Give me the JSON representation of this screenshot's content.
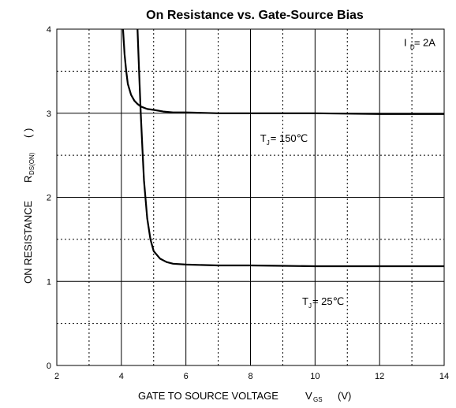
{
  "chart_data": {
    "type": "line",
    "title": "On Resistance vs. Gate-Source Bias",
    "xlabel": {
      "main": "GATE TO SOURCE VOLTAGE",
      "sym": "V",
      "sub": "GS",
      "unit": "(V)"
    },
    "ylabel": {
      "main": "ON RESISTANCE",
      "sym": "R",
      "sub": "DS(ON)",
      "unit": "( )"
    },
    "xlim": [
      2,
      14
    ],
    "ylim": [
      0,
      4
    ],
    "x_ticks": [
      "2",
      "4",
      "6",
      "8",
      "10",
      "12",
      "14"
    ],
    "y_ticks": [
      "0",
      "1",
      "2",
      "3",
      "4"
    ],
    "x_tick_values": [
      2,
      4,
      6,
      8,
      10,
      12,
      14
    ],
    "y_tick_values": [
      0,
      1,
      2,
      3,
      4
    ],
    "grid": true,
    "legend": "none",
    "annotations": [
      {
        "id": "id",
        "sym": "I",
        "sub": "D",
        "text": " = 2A",
        "x": 12.75,
        "y": 3.8
      },
      {
        "id": "tj150",
        "sym": "T",
        "sub": "J",
        "text": " = 150℃",
        "x": 8.3,
        "y": 2.66
      },
      {
        "id": "tj25",
        "sym": "T",
        "sub": "J",
        "text": " = 25℃",
        "x": 9.6,
        "y": 0.72
      }
    ],
    "series": [
      {
        "label": "T_J = 150℃",
        "x": [
          4.05,
          4.1,
          4.15,
          4.2,
          4.3,
          4.4,
          4.5,
          4.6,
          4.8,
          5.0,
          5.3,
          5.6,
          6.0,
          7.0,
          8.0,
          9.0,
          10.0,
          11.0,
          12.0,
          13.0,
          14.0
        ],
        "y": [
          4.0,
          3.7,
          3.5,
          3.35,
          3.22,
          3.15,
          3.11,
          3.08,
          3.05,
          3.04,
          3.02,
          3.01,
          3.01,
          3.0,
          3.0,
          3.0,
          3.0,
          2.995,
          2.99,
          2.99,
          2.99
        ]
      },
      {
        "label": "T_J = 25℃",
        "x": [
          4.5,
          4.55,
          4.6,
          4.65,
          4.7,
          4.8,
          4.9,
          5.0,
          5.2,
          5.4,
          5.6,
          6.0,
          7.0,
          8.0,
          9.0,
          10.0,
          11.0,
          12.0,
          13.0,
          14.0
        ],
        "y": [
          4.0,
          3.5,
          3.0,
          2.6,
          2.2,
          1.75,
          1.5,
          1.36,
          1.27,
          1.23,
          1.21,
          1.2,
          1.19,
          1.19,
          1.185,
          1.18,
          1.18,
          1.18,
          1.18,
          1.18
        ]
      }
    ]
  }
}
